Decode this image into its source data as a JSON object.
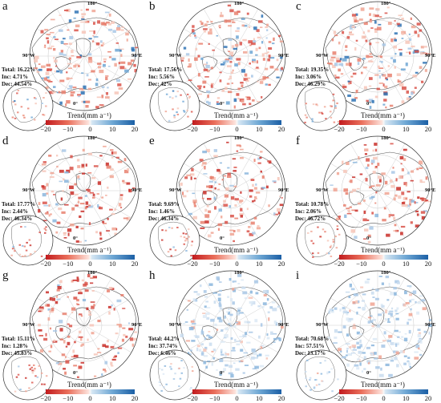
{
  "colorbar": {
    "title": "Trend(mm a⁻¹)",
    "ticks": [
      "−20",
      "−10",
      "0",
      "10",
      "20"
    ],
    "colors": [
      "#c21b1e",
      "#ea6f5b",
      "#f7f7f7",
      "#6ea7d4",
      "#1b5fa5"
    ]
  },
  "axes_labels": {
    "top": "180°",
    "left": "90°W",
    "right": "90°E",
    "bottom": "0°"
  },
  "panels": [
    {
      "letter": "a",
      "total": "Total: 16.22%",
      "inc": "Inc: 4.71%",
      "dec": "Dec: 44.54%",
      "mode": "mixed"
    },
    {
      "letter": "b",
      "total": "Total: 17.56%",
      "inc": "Inc: 5.56%",
      "dec": "Dec: 42%",
      "mode": "mixed"
    },
    {
      "letter": "c",
      "total": "Total: 19.35%",
      "inc": "Inc: 3.06%",
      "dec": "Dec: 46.29%",
      "mode": "mixed"
    },
    {
      "letter": "d",
      "total": "Total: 17.77%",
      "inc": "Inc: 2.44%",
      "dec": "Dec: 46.34%",
      "mode": "red"
    },
    {
      "letter": "e",
      "total": "Total: 9.69%",
      "inc": "Inc: 1.46%",
      "dec": "Dec: 46.34%",
      "mode": "red"
    },
    {
      "letter": "f",
      "total": "Total: 10.78%",
      "inc": "Inc: 2.06%",
      "dec": "Dec: 46.72%",
      "mode": "red"
    },
    {
      "letter": "g",
      "total": "Total: 15.11%",
      "inc": "Inc: 1.28%",
      "dec": "Dec: 45.83%",
      "mode": "red"
    },
    {
      "letter": "h",
      "total": "Total: 44.2%",
      "inc": "Inc: 37.74%",
      "dec": "Dec: 6.46%",
      "mode": "blue"
    },
    {
      "letter": "i",
      "total": "Total: 70.68%",
      "inc": "Inc: 57.51%",
      "dec": "Dec: 13.17%",
      "mode": "blue"
    }
  ]
}
